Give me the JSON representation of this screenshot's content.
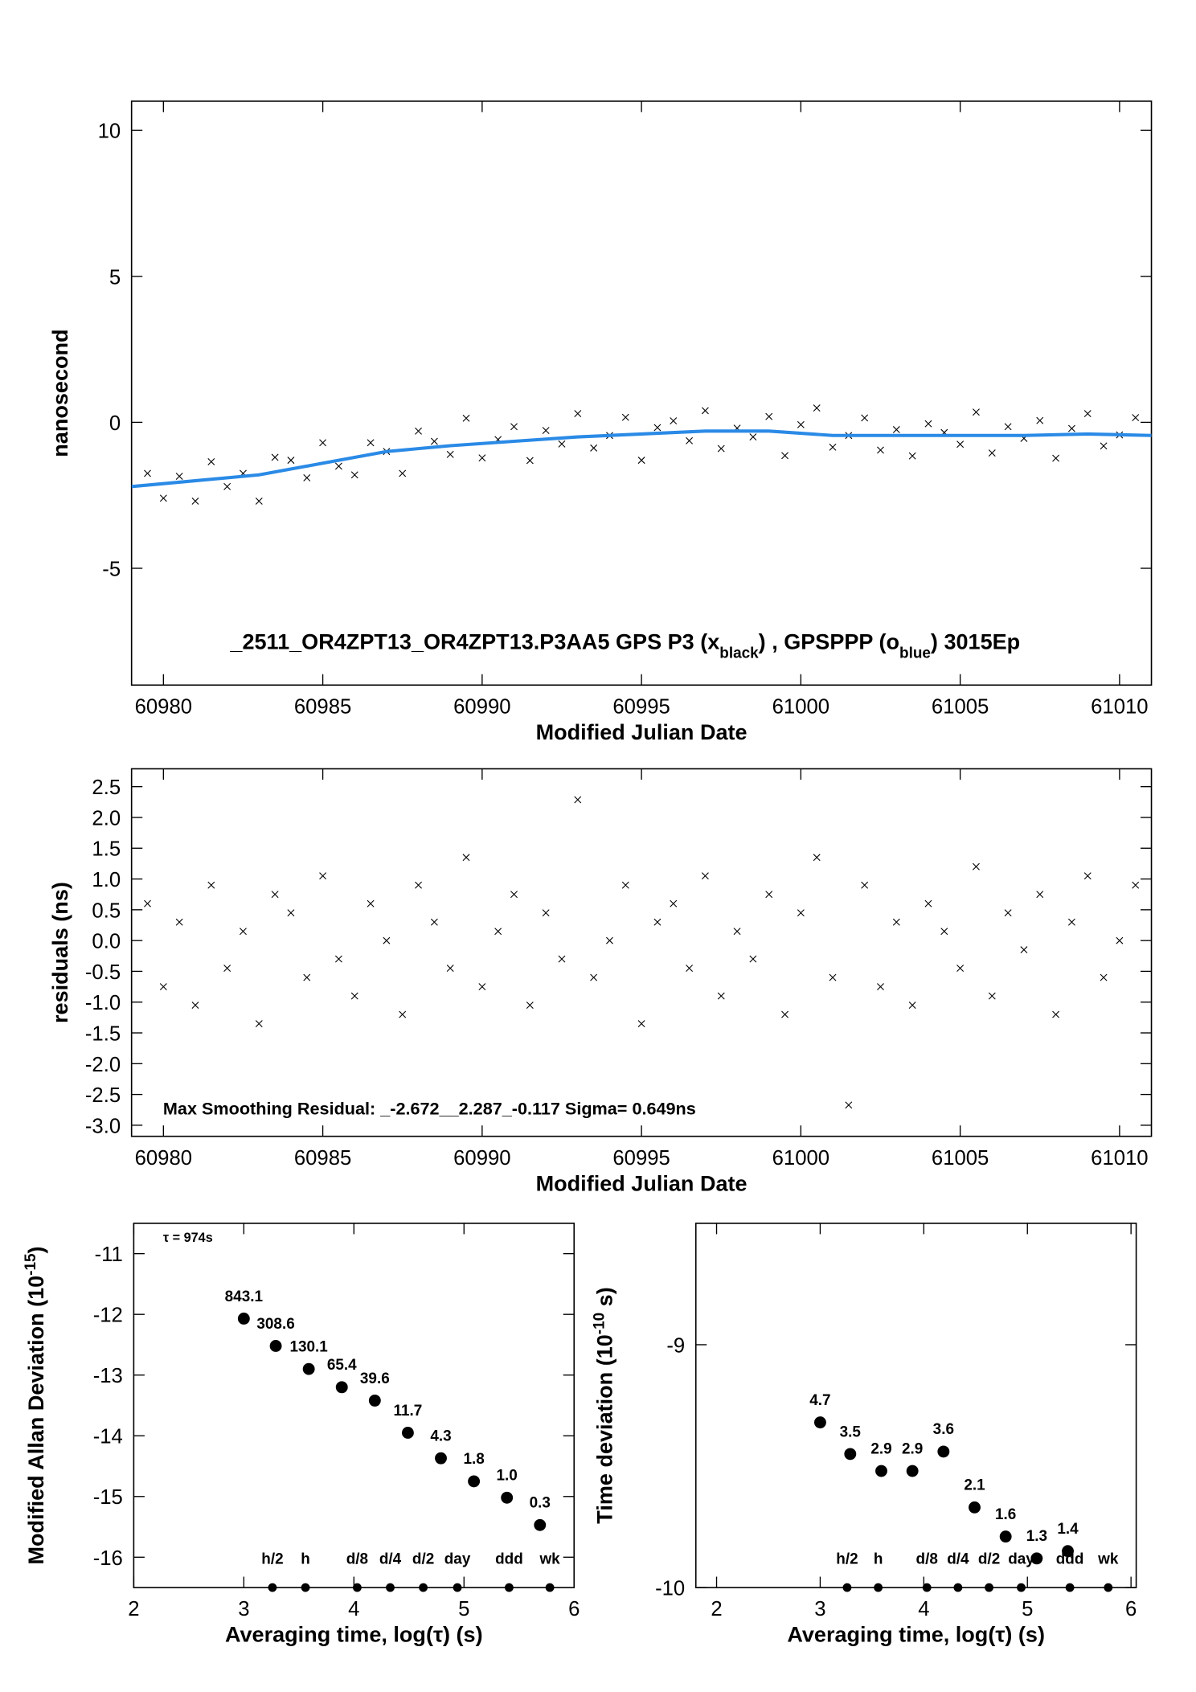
{
  "chart_data": [
    {
      "type": "scatter",
      "xlabel": "Modified Julian Date",
      "ylabel": "nanosecond",
      "annotation": [
        {
          "text": "_2511_OR4ZPT13_OR4ZPT13.P3AA5    GPS P3 (x"
        },
        {
          "text": "black",
          "sub": true
        },
        {
          "text": ") ,  GPSPPP (o"
        },
        {
          "text": "blue",
          "sub": true
        },
        {
          "text": ")  3015Ep"
        }
      ],
      "xlim": [
        60979,
        61011
      ],
      "ylim": [
        -9,
        11
      ],
      "xticks": [
        60980,
        60985,
        60990,
        60995,
        61000,
        61005,
        61010
      ],
      "yticks": [
        -5,
        0,
        5,
        10
      ],
      "series": [
        {
          "marker": "x",
          "color": "#000000",
          "x": [
            60979.5,
            60980,
            60980.5,
            60981,
            60981.5,
            60982,
            60982.5,
            60983,
            60983.5,
            60984,
            60984.5,
            60985,
            60985.5,
            60986,
            60986.5,
            60987,
            60987.5,
            60988,
            60988.5,
            60989,
            60989.5,
            60990,
            60990.5,
            60991,
            60991.5,
            60992,
            60992.5,
            60993,
            60993.5,
            60994,
            60994.5,
            60995,
            60995.5,
            60996,
            60996.5,
            60997,
            60997.5,
            60998,
            60998.5,
            60999,
            60999.5,
            61000,
            61000.5,
            61001,
            61001.5,
            61002,
            61002.5,
            61003,
            61003.5,
            61004,
            61004.5,
            61005,
            61005.5,
            61006,
            61006.5,
            61007,
            61007.5,
            61008,
            61008.5,
            61009,
            61009.5,
            61010,
            61010.5
          ],
          "values": [
            -1.75,
            -2.6,
            -1.85,
            -2.7,
            -1.35,
            -2.2,
            -1.75,
            -2.7,
            -1.2,
            -1.3,
            -1.9,
            -0.7,
            -1.5,
            -1.8,
            -0.7,
            -1.0,
            -1.75,
            -0.3,
            -0.65,
            -1.1,
            0.14,
            -1.22,
            -0.59,
            -0.15,
            -1.31,
            -0.28,
            -0.74,
            0.3,
            -0.88,
            -0.45,
            0.17,
            -1.3,
            -0.18,
            0.05,
            -0.63,
            0.4,
            -0.9,
            -0.2,
            -0.5,
            0.2,
            -1.14,
            -0.08,
            0.49,
            -0.85,
            -0.45,
            0.15,
            -0.95,
            -0.25,
            -1.15,
            -0.05,
            -0.35,
            -0.75,
            0.35,
            -1.05,
            -0.15,
            -0.55,
            0.06,
            -1.23,
            -0.21,
            0.3,
            -0.81,
            -0.43,
            0.16
          ]
        },
        {
          "marker": "line",
          "color": "#2a8ae6",
          "x": [
            60979,
            60981,
            60983,
            60985,
            60987,
            60989,
            60991,
            60993,
            60995,
            60997,
            60999,
            61001,
            61003,
            61005,
            61007,
            61009,
            61011
          ],
          "values": [
            -2.2,
            -2.0,
            -1.8,
            -1.4,
            -1.0,
            -0.8,
            -0.65,
            -0.5,
            -0.4,
            -0.3,
            -0.3,
            -0.45,
            -0.45,
            -0.45,
            -0.45,
            -0.4,
            -0.45
          ]
        }
      ]
    },
    {
      "type": "scatter",
      "xlabel": "Modified Julian Date",
      "ylabel": "residuals (ns)",
      "annotation": [
        {
          "text": "Max Smoothing Residual: _-2.672__2.287_-0.117  Sigma= 0.649ns"
        }
      ],
      "xlim": [
        60979,
        61011
      ],
      "ylim": [
        -3.18,
        2.79
      ],
      "xticks": [
        60980,
        60985,
        60990,
        60995,
        61000,
        61005,
        61010
      ],
      "yticks": [
        {
          "value": -3,
          "label": "-3.0"
        },
        -2.5,
        {
          "value": -2,
          "label": "-2.0"
        },
        -1.5,
        {
          "value": -1,
          "label": "-1.0"
        },
        -0.5,
        {
          "value": 0,
          "label": "0.0"
        },
        0.5,
        {
          "value": 1,
          "label": "1.0"
        },
        1.5,
        {
          "value": 2,
          "label": "2.0"
        },
        2.5
      ],
      "series": [
        {
          "marker": "x",
          "color": "#000000",
          "x": [
            60979.5,
            60980,
            60980.5,
            60981,
            60981.5,
            60982,
            60982.5,
            60983,
            60983.5,
            60984,
            60984.5,
            60985,
            60985.5,
            60986,
            60986.5,
            60987,
            60987.5,
            60988,
            60988.5,
            60989,
            60989.5,
            60990,
            60990.5,
            60991,
            60991.5,
            60992,
            60992.5,
            60993,
            60993.5,
            60994,
            60994.5,
            60995,
            60995.5,
            60996,
            60996.5,
            60997,
            60997.5,
            60998,
            60998.5,
            60999,
            60999.5,
            61000,
            61000.5,
            61001,
            61001.5,
            61002,
            61002.5,
            61003,
            61003.5,
            61004,
            61004.5,
            61005,
            61005.5,
            61006,
            61006.5,
            61007,
            61007.5,
            61008,
            61008.5,
            61009,
            61009.5,
            61010,
            61010.5
          ],
          "values": [
            0.6,
            -0.75,
            0.3,
            -1.05,
            0.9,
            -0.45,
            0.15,
            -1.35,
            0.75,
            0.45,
            -0.6,
            1.05,
            -0.3,
            -0.9,
            0.6,
            0.0,
            -1.2,
            0.9,
            0.3,
            -0.45,
            1.35,
            -0.75,
            0.15,
            0.75,
            -1.05,
            0.45,
            -0.3,
            2.287,
            -0.6,
            0.0,
            0.9,
            -1.35,
            0.3,
            0.6,
            -0.45,
            1.05,
            -0.9,
            0.15,
            -0.3,
            0.75,
            -1.2,
            0.45,
            1.35,
            -0.6,
            -2.672,
            0.9,
            -0.75,
            0.3,
            -1.05,
            0.6,
            0.15,
            -0.45,
            1.2,
            -0.9,
            0.45,
            -0.15,
            0.75,
            -1.2,
            0.3,
            1.05,
            -0.6,
            0.0,
            0.9
          ]
        }
      ]
    },
    {
      "type": "scatter",
      "xlabel": "Averaging time, log(τ) (s)",
      "ylabel": [
        {
          "text": "Modified Allan Deviation (10"
        },
        {
          "text": "-15",
          "sup": true
        },
        {
          "text": ")"
        }
      ],
      "annotation": [
        {
          "text": "τ = 974s"
        }
      ],
      "xlim": [
        2,
        6
      ],
      "ylim": [
        -16.5,
        -10.5
      ],
      "xticks": [
        2,
        3,
        4,
        5,
        6
      ],
      "yticks": [
        -16,
        -15,
        -14,
        -13,
        -12,
        -11
      ],
      "series": [
        {
          "marker": "dot",
          "color": "#000000",
          "label_color": "#e00000",
          "x": [
            3.0,
            3.29,
            3.59,
            3.89,
            4.19,
            4.49,
            4.79,
            5.09,
            5.39,
            5.69
          ],
          "values": [
            -12.07,
            -12.52,
            -12.9,
            -13.2,
            -13.42,
            -13.95,
            -14.37,
            -14.75,
            -15.02,
            -15.47
          ],
          "point_labels": [
            "843.1",
            "308.6",
            "130.1",
            "65.4",
            "39.6",
            "11.7",
            "4.3",
            "1.8",
            "1.0",
            "0.3"
          ]
        }
      ],
      "markers": {
        "x": [
          3.26,
          3.56,
          4.03,
          4.33,
          4.63,
          4.94,
          5.41,
          5.78
        ],
        "labels": [
          "h/2",
          "h",
          "d/8",
          "d/4",
          "d/2",
          "day",
          "ddd",
          "wk"
        ]
      }
    },
    {
      "type": "scatter",
      "xlabel": "Averaging time, log(τ) (s)",
      "ylabel": [
        {
          "text": "Time deviation (10"
        },
        {
          "text": "-10",
          "sup": true
        },
        {
          "text": " s)"
        }
      ],
      "xlim": [
        1.8,
        6.05
      ],
      "ylim": [
        -10,
        -8.5
      ],
      "xticks": [
        2,
        3,
        4,
        5,
        6
      ],
      "yticks": [
        -10,
        -9
      ],
      "series": [
        {
          "marker": "dot",
          "color": "#000000",
          "label_color": "#e00000",
          "x": [
            3.0,
            3.29,
            3.59,
            3.89,
            4.19,
            4.49,
            4.79,
            5.09,
            5.39
          ],
          "values": [
            -9.32,
            -9.45,
            -9.52,
            -9.52,
            -9.44,
            -9.67,
            -9.79,
            -9.88,
            -9.85
          ],
          "point_labels": [
            "4.7",
            "3.5",
            "2.9",
            "2.9",
            "3.6",
            "2.1",
            "1.6",
            "1.3",
            "1.4"
          ]
        }
      ],
      "markers": {
        "x": [
          3.26,
          3.56,
          4.03,
          4.33,
          4.63,
          4.94,
          5.41,
          5.78
        ],
        "labels": [
          "h/2",
          "h",
          "d/8",
          "d/4",
          "d/2",
          "day",
          "ddd",
          "wk"
        ]
      }
    }
  ]
}
